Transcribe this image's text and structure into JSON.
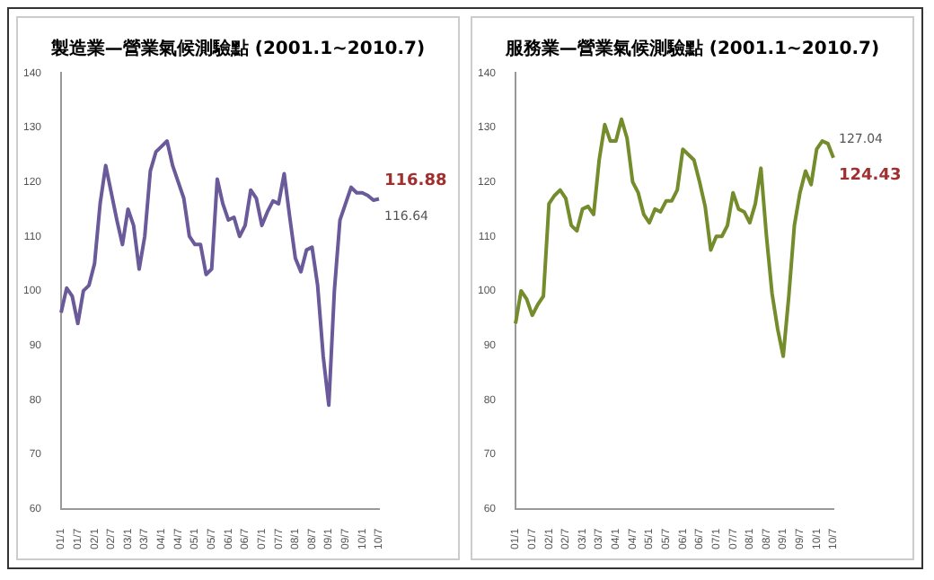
{
  "chart_data": [
    {
      "type": "line",
      "title": "製造業—營業氣候測驗點 (2001.1~2010.7)",
      "categories": [
        "01/1",
        null,
        null,
        "01/7",
        null,
        null,
        "02/1",
        null,
        null,
        "02/7",
        null,
        null,
        "03/1",
        null,
        null,
        "03/7",
        null,
        null,
        "04/1",
        null,
        null,
        "04/7",
        null,
        null,
        "05/1",
        null,
        null,
        "05/7",
        null,
        null,
        "06/1",
        null,
        null,
        "06/7",
        null,
        null,
        "07/1",
        null,
        null,
        "07/7",
        null,
        null,
        "08/1",
        null,
        null,
        "08/7",
        null,
        null,
        "09/1",
        null,
        null,
        "09/7",
        null,
        null,
        "10/1",
        null,
        null,
        "10/7"
      ],
      "series": [
        {
          "color": "#6a5a9a",
          "values": [
            96,
            100.5,
            99,
            94,
            100,
            101,
            105,
            116,
            123,
            118,
            113,
            108.5,
            115,
            112,
            104,
            110,
            122,
            125.5,
            126.5,
            127.5,
            123,
            120,
            117,
            110,
            108.5,
            108.5,
            103,
            104,
            120.5,
            116,
            113,
            113.5,
            110,
            112,
            118.5,
            117,
            112,
            114.5,
            116.5,
            116,
            121.5,
            113.5,
            106,
            103.5,
            107.5,
            108,
            101,
            88,
            79,
            100,
            113,
            116,
            119,
            118,
            118,
            117.5,
            116.64,
            116.88
          ]
        }
      ],
      "ylim": [
        60,
        140
      ],
      "yticks": [
        60,
        70,
        80,
        90,
        100,
        110,
        120,
        130,
        140
      ],
      "annotations": [
        "116.88",
        "116.64"
      ]
    },
    {
      "type": "line",
      "title": "服務業—營業氣候測驗點 (2001.1~2010.7)",
      "categories": [
        "01/1",
        null,
        null,
        "01/7",
        null,
        null,
        "02/1",
        null,
        null,
        "02/7",
        null,
        null,
        "03/1",
        null,
        null,
        "03/7",
        null,
        null,
        "04/1",
        null,
        null,
        "04/7",
        null,
        null,
        "05/1",
        null,
        null,
        "05/7",
        null,
        null,
        "06/1",
        null,
        null,
        "06/7",
        null,
        null,
        "07/1",
        null,
        null,
        "07/7",
        null,
        null,
        "08/1",
        null,
        null,
        "08/7",
        null,
        null,
        "09/1",
        null,
        null,
        "09/7",
        null,
        null,
        "10/1",
        null,
        null,
        "10/7"
      ],
      "series": [
        {
          "color": "#748c2c",
          "values": [
            94,
            100,
            98.5,
            95.5,
            97.5,
            99,
            116,
            117.5,
            118.5,
            117,
            112,
            111,
            115,
            115.5,
            114,
            124,
            130.5,
            127.5,
            127.5,
            131.5,
            128,
            120,
            118,
            114,
            112.5,
            115,
            114.5,
            116.5,
            116.5,
            118.5,
            126,
            125,
            124,
            120,
            115.5,
            107.5,
            110,
            110,
            112,
            118,
            115,
            114.5,
            112.5,
            116,
            122.5,
            110,
            99.5,
            93,
            88,
            99,
            112,
            118,
            122,
            119.5,
            126,
            127.5,
            127.04,
            124.43
          ]
        }
      ],
      "ylim": [
        60,
        140
      ],
      "yticks": [
        60,
        70,
        80,
        90,
        100,
        110,
        120,
        130,
        140
      ],
      "annotations": [
        "127.04",
        "124.43"
      ]
    }
  ]
}
